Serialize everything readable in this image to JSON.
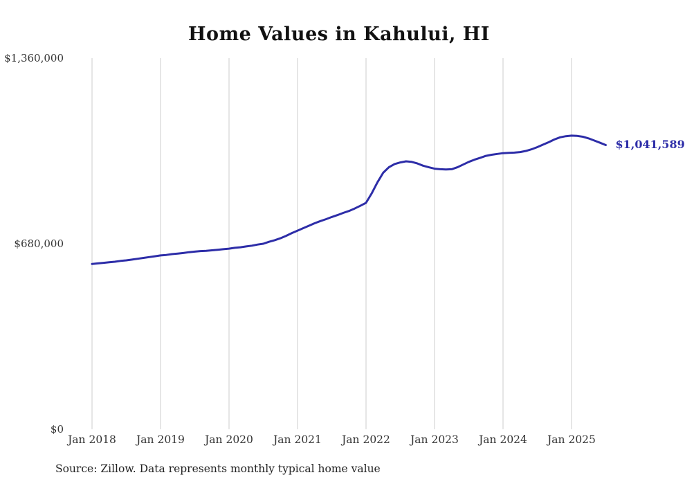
{
  "chart": {
    "title": "Home Values in Kahului, HI",
    "source_note": "Source: Zillow. Data represents monthly typical home value",
    "end_label": "$1,041,589",
    "colors": {
      "line": "#2d2da8",
      "grid": "#cccccc",
      "text": "#333333"
    }
  },
  "chart_data": {
    "type": "line",
    "title": "Home Values in Kahului, HI",
    "x_start": "Jan 2018",
    "x_end": "Jul 2025",
    "x_interval": "month",
    "x_tick_labels": [
      "Jan 2018",
      "Jan 2019",
      "Jan 2020",
      "Jan 2021",
      "Jan 2022",
      "Jan 2023",
      "Jan 2024",
      "Jan 2025"
    ],
    "y_ticks": [
      {
        "value": 0,
        "label": "$0"
      },
      {
        "value": 680000,
        "label": "$680,000"
      },
      {
        "value": 1360000,
        "label": "$1,360,000"
      }
    ],
    "ylim": [
      0,
      1360000
    ],
    "grid": "vertical-only",
    "legend": "none",
    "final_value": 1041589,
    "values": [
      606000,
      608000,
      610000,
      612000,
      614000,
      617000,
      619000,
      622000,
      625000,
      628000,
      631000,
      634000,
      637000,
      639000,
      642000,
      644000,
      646000,
      649000,
      651000,
      653000,
      654000,
      656000,
      658000,
      660000,
      662000,
      665000,
      667000,
      670000,
      673000,
      677000,
      680000,
      687000,
      693000,
      700000,
      709000,
      719000,
      728000,
      737000,
      746000,
      755000,
      763000,
      770000,
      778000,
      785000,
      793000,
      800000,
      809000,
      819000,
      830000,
      865000,
      905000,
      940000,
      960000,
      972000,
      978000,
      982000,
      980000,
      974000,
      966000,
      960000,
      955000,
      953000,
      952000,
      953000,
      960000,
      970000,
      980000,
      988000,
      995000,
      1002000,
      1006000,
      1009000,
      1012000,
      1013000,
      1014000,
      1016000,
      1020000,
      1026000,
      1034000,
      1043000,
      1052000,
      1062000,
      1070000,
      1074000,
      1076000,
      1075000,
      1072000,
      1066000,
      1058000,
      1050000,
      1041589
    ]
  }
}
